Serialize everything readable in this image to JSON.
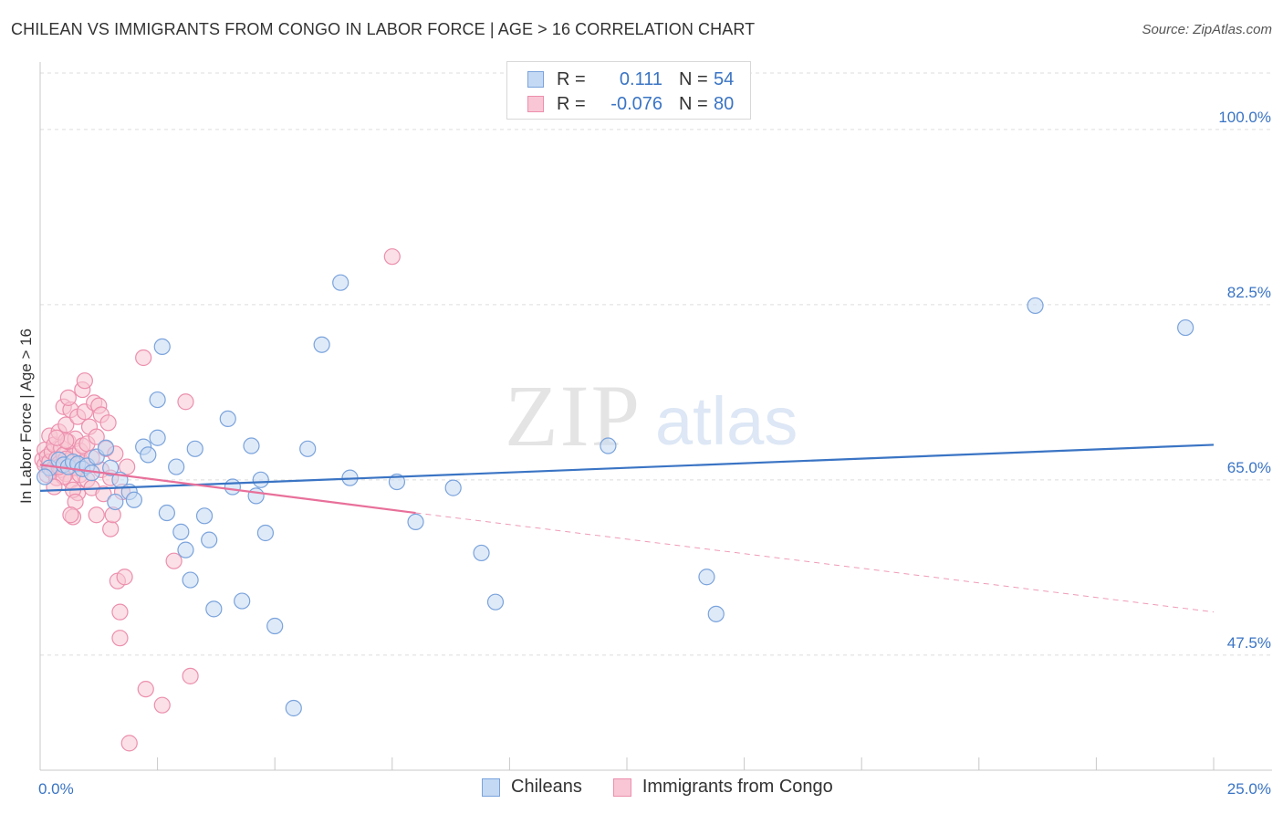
{
  "title": "CHILEAN VS IMMIGRANTS FROM CONGO IN LABOR FORCE | AGE > 16 CORRELATION CHART",
  "source": "Source: ZipAtlas.com",
  "watermark": {
    "zip": "ZIP",
    "atlas": "atlas"
  },
  "colors": {
    "chileans_fill": "#c4d9f3",
    "chileans_stroke": "#7aa3dc",
    "chileans_line": "#3a74c4",
    "congo_fill": "#f8c6d4",
    "congo_stroke": "#ec8fad",
    "congo_line": "#e8709a",
    "grid": "#dddddd",
    "axis_text": "#3a74c4"
  },
  "legend": {
    "rows": [
      {
        "r_label": "R =",
        "r_value": "0.111",
        "n_label": "N =",
        "n_value": "54"
      },
      {
        "r_label": "R =",
        "r_value": "-0.076",
        "n_label": "N =",
        "n_value": "80"
      }
    ]
  },
  "bottom_legend": [
    "Chileans",
    "Immigrants from Congo"
  ],
  "chart_data": {
    "type": "scatter",
    "title": "CHILEAN VS IMMIGRANTS FROM CONGO IN LABOR FORCE | AGE > 16 CORRELATION CHART",
    "xlabel": "",
    "ylabel": "In Labor Force | Age > 16",
    "xlim": [
      0,
      25
    ],
    "ylim": [
      36,
      106
    ],
    "x_tick_labels": [
      "0.0%",
      "25.0%"
    ],
    "y_ticks": [
      47.5,
      65.0,
      82.5,
      100.0
    ],
    "y_tick_labels": [
      "47.5%",
      "65.0%",
      "82.5%",
      "100.0%"
    ],
    "grid": true,
    "legend_position": "top-center",
    "series": [
      {
        "name": "Chileans",
        "r": 0.111,
        "n": 54,
        "trend": {
          "x": [
            0,
            25
          ],
          "y": [
            63.9,
            68.5
          ],
          "dashed_to": null
        },
        "points": [
          [
            0.2,
            66.2
          ],
          [
            0.4,
            67.0
          ],
          [
            0.5,
            66.5
          ],
          [
            0.6,
            66.3
          ],
          [
            0.7,
            66.8
          ],
          [
            0.8,
            66.6
          ],
          [
            0.9,
            66.1
          ],
          [
            1.0,
            66.4
          ],
          [
            1.1,
            65.7
          ],
          [
            1.2,
            67.3
          ],
          [
            1.4,
            68.2
          ],
          [
            1.5,
            66.2
          ],
          [
            1.6,
            62.8
          ],
          [
            1.7,
            65.0
          ],
          [
            1.9,
            63.8
          ],
          [
            2.0,
            63.0
          ],
          [
            2.2,
            68.3
          ],
          [
            2.3,
            67.5
          ],
          [
            2.5,
            73.0
          ],
          [
            2.5,
            69.2
          ],
          [
            2.6,
            78.3
          ],
          [
            2.7,
            61.7
          ],
          [
            2.9,
            66.3
          ],
          [
            3.0,
            59.8
          ],
          [
            3.1,
            58.0
          ],
          [
            3.2,
            55.0
          ],
          [
            3.3,
            68.1
          ],
          [
            3.5,
            61.4
          ],
          [
            3.6,
            59.0
          ],
          [
            3.7,
            52.1
          ],
          [
            4.0,
            71.1
          ],
          [
            4.1,
            64.3
          ],
          [
            4.3,
            52.9
          ],
          [
            4.5,
            68.4
          ],
          [
            4.6,
            63.4
          ],
          [
            4.7,
            65.0
          ],
          [
            4.8,
            59.7
          ],
          [
            5.0,
            50.4
          ],
          [
            5.4,
            42.2
          ],
          [
            5.7,
            68.1
          ],
          [
            6.0,
            78.5
          ],
          [
            6.4,
            84.7
          ],
          [
            6.6,
            65.2
          ],
          [
            7.6,
            64.8
          ],
          [
            8.0,
            60.8
          ],
          [
            8.8,
            64.2
          ],
          [
            9.4,
            57.7
          ],
          [
            9.7,
            52.8
          ],
          [
            12.1,
            68.4
          ],
          [
            14.2,
            55.3
          ],
          [
            14.4,
            51.6
          ],
          [
            21.2,
            82.4
          ],
          [
            24.4,
            80.2
          ],
          [
            0.1,
            65.3
          ]
        ]
      },
      {
        "name": "Immigrants from Congo",
        "r": -0.076,
        "n": 80,
        "trend": {
          "x": [
            0,
            8.0
          ],
          "y": [
            66.5,
            61.7
          ],
          "dashed_to": [
            25,
            51.8
          ]
        },
        "points": [
          [
            0.05,
            67.0
          ],
          [
            0.1,
            66.5
          ],
          [
            0.1,
            68.0
          ],
          [
            0.15,
            65.5
          ],
          [
            0.15,
            67.3
          ],
          [
            0.2,
            66.8
          ],
          [
            0.2,
            69.4
          ],
          [
            0.25,
            67.8
          ],
          [
            0.25,
            65.9
          ],
          [
            0.3,
            66.2
          ],
          [
            0.3,
            68.5
          ],
          [
            0.35,
            67.1
          ],
          [
            0.35,
            65.2
          ],
          [
            0.4,
            66.6
          ],
          [
            0.4,
            69.8
          ],
          [
            0.45,
            68.2
          ],
          [
            0.45,
            66.0
          ],
          [
            0.5,
            72.3
          ],
          [
            0.5,
            67.5
          ],
          [
            0.55,
            65.6
          ],
          [
            0.55,
            70.5
          ],
          [
            0.6,
            68.8
          ],
          [
            0.6,
            66.9
          ],
          [
            0.65,
            72.0
          ],
          [
            0.65,
            64.9
          ],
          [
            0.7,
            67.4
          ],
          [
            0.7,
            61.3
          ],
          [
            0.75,
            69.1
          ],
          [
            0.75,
            66.2
          ],
          [
            0.8,
            71.3
          ],
          [
            0.8,
            63.7
          ],
          [
            0.85,
            67.9
          ],
          [
            0.85,
            65.5
          ],
          [
            0.9,
            68.4
          ],
          [
            0.9,
            66.7
          ],
          [
            0.6,
            73.2
          ],
          [
            0.55,
            68.9
          ],
          [
            0.5,
            65.3
          ],
          [
            0.7,
            64.0
          ],
          [
            0.75,
            62.8
          ],
          [
            0.4,
            66.3
          ],
          [
            0.35,
            69.2
          ],
          [
            0.3,
            64.3
          ],
          [
            0.65,
            61.5
          ],
          [
            0.55,
            67.1
          ],
          [
            0.9,
            74.0
          ],
          [
            0.95,
            71.8
          ],
          [
            1.0,
            65.0
          ],
          [
            1.0,
            68.6
          ],
          [
            1.05,
            70.3
          ],
          [
            1.1,
            64.2
          ],
          [
            1.1,
            67.2
          ],
          [
            1.15,
            72.7
          ],
          [
            1.2,
            69.3
          ],
          [
            1.2,
            61.5
          ],
          [
            1.25,
            72.4
          ],
          [
            1.3,
            71.5
          ],
          [
            1.3,
            66.0
          ],
          [
            1.35,
            63.6
          ],
          [
            1.4,
            68.1
          ],
          [
            1.45,
            70.7
          ],
          [
            1.5,
            65.2
          ],
          [
            1.5,
            60.1
          ],
          [
            1.55,
            61.5
          ],
          [
            1.6,
            67.6
          ],
          [
            1.65,
            54.9
          ],
          [
            1.7,
            51.8
          ],
          [
            1.7,
            49.2
          ],
          [
            1.75,
            63.8
          ],
          [
            1.8,
            55.3
          ],
          [
            1.9,
            38.7
          ],
          [
            2.2,
            77.2
          ],
          [
            2.25,
            44.1
          ],
          [
            2.6,
            42.5
          ],
          [
            2.85,
            56.9
          ],
          [
            3.1,
            72.8
          ],
          [
            3.2,
            45.4
          ],
          [
            7.5,
            87.3
          ],
          [
            0.95,
            74.9
          ],
          [
            1.85,
            66.3
          ]
        ]
      }
    ]
  }
}
